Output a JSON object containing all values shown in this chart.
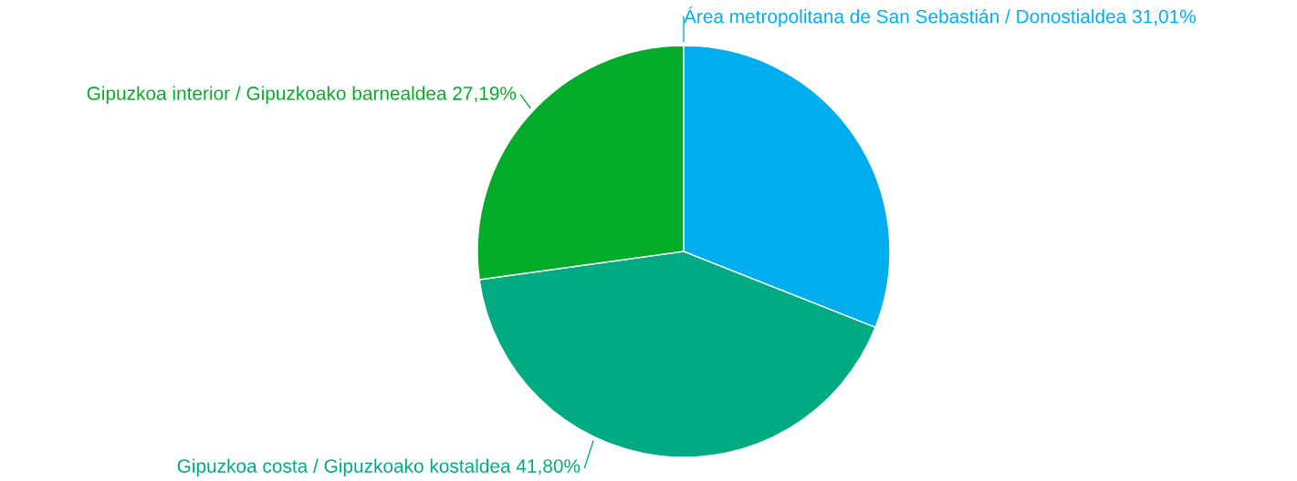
{
  "chart_data": {
    "type": "pie",
    "categories": [
      "Área metropolitana de San Sebastián / Donostialdea",
      "Gipuzkoa costa / Gipuzkoako kostaldea",
      "Gipuzkoa interior / Gipuzkoako barnealdea"
    ],
    "values": [
      31.01,
      41.8,
      27.19
    ],
    "value_labels": [
      "31,01%",
      "41,80%",
      "27,19%"
    ],
    "colors": [
      "#00aeef",
      "#00ab84",
      "#04ad29"
    ]
  }
}
